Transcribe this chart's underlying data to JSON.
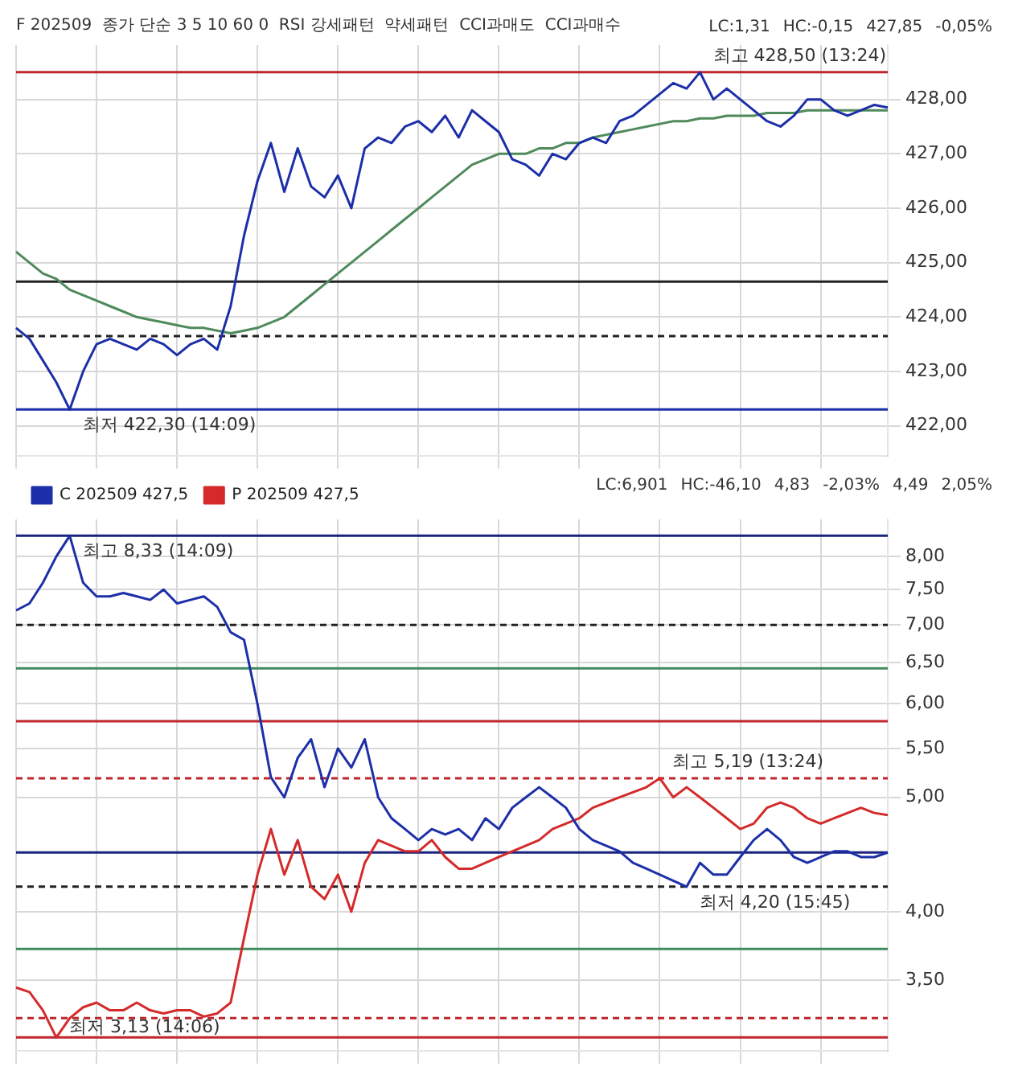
{
  "chart_data": [
    {
      "type": "line",
      "title": "F 202509  종가 단순 3 5 10 60 0  RSI 강세패턴  약세패턴  CCI과매도  CCI과매수",
      "categories": [
        null,
        null,
        null,
        null,
        null,
        null,
        null,
        null,
        null,
        null,
        null,
        null,
        null,
        null,
        null,
        null,
        null,
        null,
        null,
        null,
        null,
        null,
        null,
        null,
        null,
        null,
        null,
        null,
        null,
        null,
        null,
        null,
        null,
        null,
        null,
        null,
        null,
        null,
        null,
        null,
        null,
        null,
        null,
        null,
        null,
        null,
        null,
        null,
        null,
        null,
        null,
        null,
        null,
        null,
        null,
        null,
        null,
        null,
        null,
        null,
        null,
        null,
        null,
        null,
        null,
        null
      ],
      "series": [
        {
          "color": "#1c2fa8",
          "values": [
            423.8,
            423.6,
            423.2,
            422.8,
            422.3,
            423.0,
            423.5,
            423.6,
            423.5,
            423.4,
            423.6,
            423.5,
            423.3,
            423.5,
            423.6,
            423.4,
            424.2,
            425.5,
            426.5,
            427.2,
            426.3,
            427.1,
            426.4,
            426.2,
            426.6,
            426.0,
            427.1,
            427.3,
            427.2,
            427.5,
            427.6,
            427.4,
            427.7,
            427.3,
            427.8,
            427.6,
            427.4,
            426.9,
            426.8,
            426.6,
            427.0,
            426.9,
            427.2,
            427.3,
            427.2,
            427.6,
            427.7,
            427.9,
            428.1,
            428.3,
            428.2,
            428.5,
            428.0,
            428.2,
            428.0,
            427.8,
            427.6,
            427.5,
            427.7,
            428.0,
            428.0,
            427.8,
            427.7,
            427.8,
            427.9,
            427.85
          ]
        },
        {
          "color": "#4f8a5a",
          "values": [
            425.2,
            425.0,
            424.8,
            424.7,
            424.5,
            424.4,
            424.3,
            424.2,
            424.1,
            424.0,
            423.95,
            423.9,
            423.85,
            423.8,
            423.8,
            423.75,
            423.7,
            423.75,
            423.8,
            423.9,
            424.0,
            424.2,
            424.4,
            424.6,
            424.8,
            425.0,
            425.2,
            425.4,
            425.6,
            425.8,
            426.0,
            426.2,
            426.4,
            426.6,
            426.8,
            426.9,
            427.0,
            427.0,
            427.0,
            427.1,
            427.1,
            427.2,
            427.2,
            427.3,
            427.35,
            427.4,
            427.45,
            427.5,
            427.55,
            427.6,
            427.6,
            427.65,
            427.65,
            427.7,
            427.7,
            427.7,
            427.75,
            427.75,
            427.75,
            427.8,
            427.8,
            427.8,
            427.8,
            427.8,
            427.8,
            427.8
          ]
        }
      ],
      "ylim": [
        421.45,
        429.0
      ],
      "yticks": [
        {
          "value": 422,
          "label": "422,00"
        },
        {
          "value": 423,
          "label": "423,00"
        },
        {
          "value": 424,
          "label": "424,00"
        },
        {
          "value": 425,
          "label": "425,00"
        },
        {
          "value": 426,
          "label": "426,00"
        },
        {
          "value": 427,
          "label": "427,00"
        },
        {
          "value": 428,
          "label": "428,00"
        }
      ],
      "ref_lines": [
        {
          "axis": "y",
          "value": 428.5,
          "color": "#c0262d"
        },
        {
          "axis": "y",
          "value": 424.65,
          "color": "#222222"
        },
        {
          "axis": "y",
          "value": 423.65,
          "color": "#222222",
          "line_style": "dashed"
        },
        {
          "axis": "y",
          "value": 422.3,
          "color": "#1c2fa8"
        }
      ],
      "annotations": [
        {
          "text": "최고 428,50 (13:24)",
          "y": 428.5
        },
        {
          "text": "최저 422,30 (14:09)",
          "y": 422.3
        },
        "LC:1,31",
        "HC:-0,15",
        "427,85",
        "-0,05%"
      ],
      "grid": true,
      "legend": false,
      "marker": "none",
      "tick_labels": "y"
    },
    {
      "type": "line",
      "categories": [
        null,
        null,
        null,
        null,
        null,
        null,
        null,
        null,
        null,
        null,
        null,
        null,
        null,
        null,
        null,
        null,
        null,
        null,
        null,
        null,
        null,
        null,
        null,
        null,
        null,
        null,
        null,
        null,
        null,
        null,
        null,
        null,
        null,
        null,
        null,
        null,
        null,
        null,
        null,
        null,
        null,
        null,
        null,
        null,
        null,
        null,
        null,
        null,
        null,
        null,
        null,
        null,
        null,
        null,
        null,
        null,
        null,
        null,
        null,
        null,
        null,
        null,
        null,
        null,
        null,
        null
      ],
      "series": [
        {
          "name": "C 202509 427,5",
          "color": "#1c2fa8",
          "values": [
            7.2,
            7.3,
            7.6,
            8.0,
            8.33,
            7.6,
            7.4,
            7.4,
            7.45,
            7.4,
            7.35,
            7.5,
            7.3,
            7.35,
            7.4,
            7.25,
            6.9,
            6.8,
            6.0,
            5.2,
            5.0,
            5.4,
            5.6,
            5.1,
            5.5,
            5.3,
            5.6,
            5.0,
            4.8,
            4.7,
            4.6,
            4.7,
            4.65,
            4.7,
            4.6,
            4.8,
            4.7,
            4.9,
            5.0,
            5.1,
            5.0,
            4.9,
            4.7,
            4.6,
            4.55,
            4.5,
            4.4,
            4.35,
            4.3,
            4.25,
            4.2,
            4.4,
            4.3,
            4.3,
            4.45,
            4.6,
            4.7,
            4.6,
            4.45,
            4.4,
            4.45,
            4.5,
            4.5,
            4.45,
            4.45,
            4.49
          ]
        },
        {
          "name": "P 202509 427,5",
          "color": "#d42a2a",
          "values": [
            3.45,
            3.42,
            3.3,
            3.13,
            3.25,
            3.32,
            3.35,
            3.3,
            3.3,
            3.35,
            3.3,
            3.28,
            3.3,
            3.3,
            3.26,
            3.28,
            3.35,
            3.8,
            4.3,
            4.7,
            4.3,
            4.6,
            4.2,
            4.1,
            4.3,
            4.0,
            4.4,
            4.6,
            4.55,
            4.5,
            4.5,
            4.6,
            4.45,
            4.35,
            4.35,
            4.4,
            4.45,
            4.5,
            4.55,
            4.6,
            4.7,
            4.75,
            4.8,
            4.9,
            4.95,
            5.0,
            5.05,
            5.1,
            5.19,
            5.0,
            5.1,
            5.0,
            4.9,
            4.8,
            4.7,
            4.75,
            4.9,
            4.95,
            4.9,
            4.8,
            4.75,
            4.8,
            4.85,
            4.9,
            4.85,
            4.83
          ]
        }
      ],
      "log": true,
      "ylim": [
        3.05,
        8.6
      ],
      "yticks": [
        {
          "value": 3.5,
          "label": "3,50"
        },
        {
          "value": 4,
          "label": "4,00"
        },
        {
          "value": 5,
          "label": "5,00"
        },
        {
          "value": 5.5,
          "label": "5,50"
        },
        {
          "value": 6,
          "label": "6,00"
        },
        {
          "value": 6.5,
          "label": "6,50"
        },
        {
          "value": 7,
          "label": "7,00"
        },
        {
          "value": 7.5,
          "label": "7,50"
        },
        {
          "value": 8,
          "label": "8,00"
        }
      ],
      "ref_lines": [
        {
          "axis": "y",
          "value": 8.33,
          "color": "#1a237e"
        },
        {
          "axis": "y",
          "value": 7.0,
          "color": "#222222",
          "line_style": "dashed"
        },
        {
          "axis": "y",
          "value": 6.43,
          "color": "#3f8a5f"
        },
        {
          "axis": "y",
          "value": 5.8,
          "color": "#c0262d"
        },
        {
          "axis": "y",
          "value": 5.19,
          "color": "#c0262d",
          "line_style": "dashed"
        },
        {
          "axis": "y",
          "value": 4.49,
          "color": "#1a237e"
        },
        {
          "axis": "y",
          "value": 4.2,
          "color": "#222222",
          "line_style": "dashed"
        },
        {
          "axis": "y",
          "value": 3.72,
          "color": "#3f8a5f"
        },
        {
          "axis": "y",
          "value": 3.25,
          "color": "#c0262d",
          "line_style": "dashed"
        },
        {
          "axis": "y",
          "value": 3.13,
          "color": "#c0262d"
        }
      ],
      "annotations": [
        {
          "text": "최고 8,33 (14:09)",
          "y": 8.33
        },
        {
          "text": "최저 3,13 (14:06)",
          "y": 3.13
        },
        {
          "text": "최고 5,19 (13:24)",
          "y": 5.19
        },
        {
          "text": "최저 4,20 (15:45)",
          "y": 4.2
        },
        "LC:6,901",
        "HC:-46,10",
        "4,83",
        "-2,03%",
        "4,49",
        "2,05%"
      ],
      "grid": true,
      "legend": "top left",
      "marker": "none",
      "tick_labels": "y"
    }
  ]
}
